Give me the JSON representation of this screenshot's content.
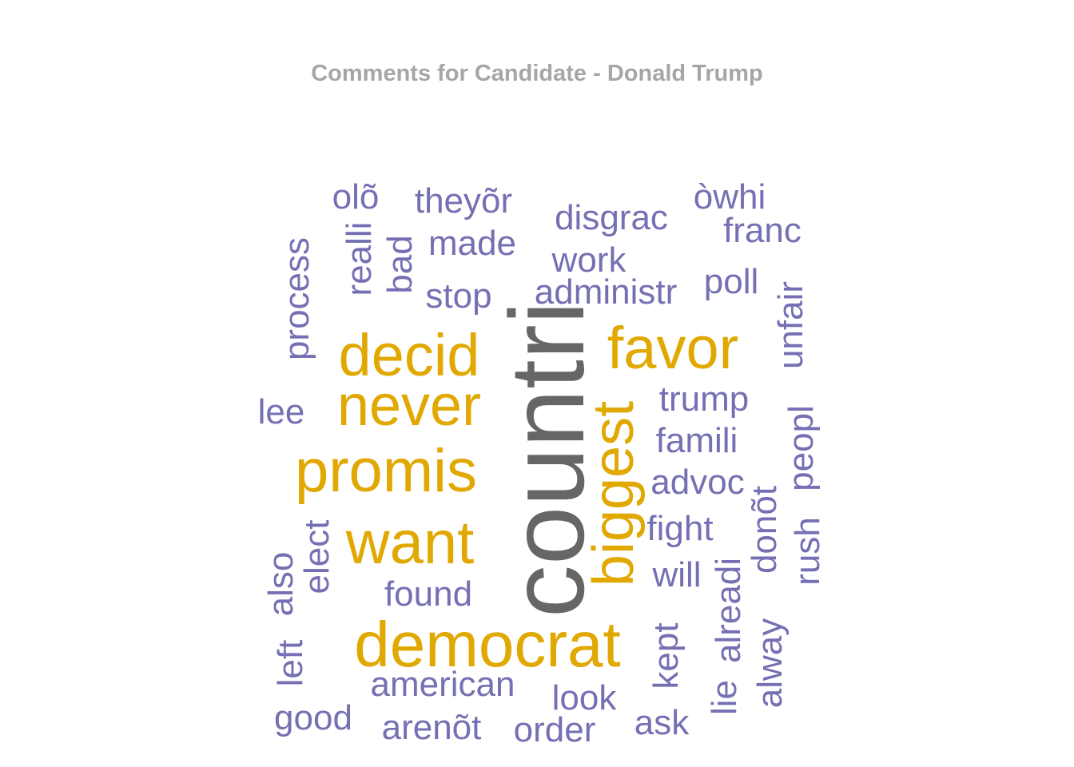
{
  "title": "Comments for Candidate - Donald Trump",
  "colors": {
    "gold": "#e0a800",
    "purple": "#7570b3",
    "gray": "#666666",
    "title": "#a6a6a6"
  },
  "words": [
    {
      "text": "countri",
      "color": "gray"
    },
    {
      "text": "democrat",
      "color": "gold"
    },
    {
      "text": "promis",
      "color": "gold"
    },
    {
      "text": "never",
      "color": "gold"
    },
    {
      "text": "want",
      "color": "gold"
    },
    {
      "text": "decid",
      "color": "gold"
    },
    {
      "text": "favor",
      "color": "gold"
    },
    {
      "text": "biggest",
      "color": "gold"
    },
    {
      "text": "olõ",
      "color": "purple"
    },
    {
      "text": "theyõr",
      "color": "purple"
    },
    {
      "text": "disgrac",
      "color": "purple"
    },
    {
      "text": "òwhi",
      "color": "purple"
    },
    {
      "text": "franc",
      "color": "purple"
    },
    {
      "text": "made",
      "color": "purple"
    },
    {
      "text": "work",
      "color": "purple"
    },
    {
      "text": "poll",
      "color": "purple"
    },
    {
      "text": "stop",
      "color": "purple"
    },
    {
      "text": "administr",
      "color": "purple"
    },
    {
      "text": "process",
      "color": "purple"
    },
    {
      "text": "realli",
      "color": "purple"
    },
    {
      "text": "bad",
      "color": "purple"
    },
    {
      "text": "unfair",
      "color": "purple"
    },
    {
      "text": "lee",
      "color": "purple"
    },
    {
      "text": "trump",
      "color": "purple"
    },
    {
      "text": "famili",
      "color": "purple"
    },
    {
      "text": "peopl",
      "color": "purple"
    },
    {
      "text": "advoc",
      "color": "purple"
    },
    {
      "text": "fight",
      "color": "purple"
    },
    {
      "text": "elect",
      "color": "purple"
    },
    {
      "text": "also",
      "color": "purple"
    },
    {
      "text": "will",
      "color": "purple"
    },
    {
      "text": "rush",
      "color": "purple"
    },
    {
      "text": "donõt",
      "color": "purple"
    },
    {
      "text": "found",
      "color": "purple"
    },
    {
      "text": "alreadi",
      "color": "purple"
    },
    {
      "text": "alway",
      "color": "purple"
    },
    {
      "text": "kept",
      "color": "purple"
    },
    {
      "text": "lie",
      "color": "purple"
    },
    {
      "text": "left",
      "color": "purple"
    },
    {
      "text": "american",
      "color": "purple"
    },
    {
      "text": "look",
      "color": "purple"
    },
    {
      "text": "good",
      "color": "purple"
    },
    {
      "text": "arenõt",
      "color": "purple"
    },
    {
      "text": "order",
      "color": "purple"
    },
    {
      "text": "ask",
      "color": "purple"
    }
  ]
}
